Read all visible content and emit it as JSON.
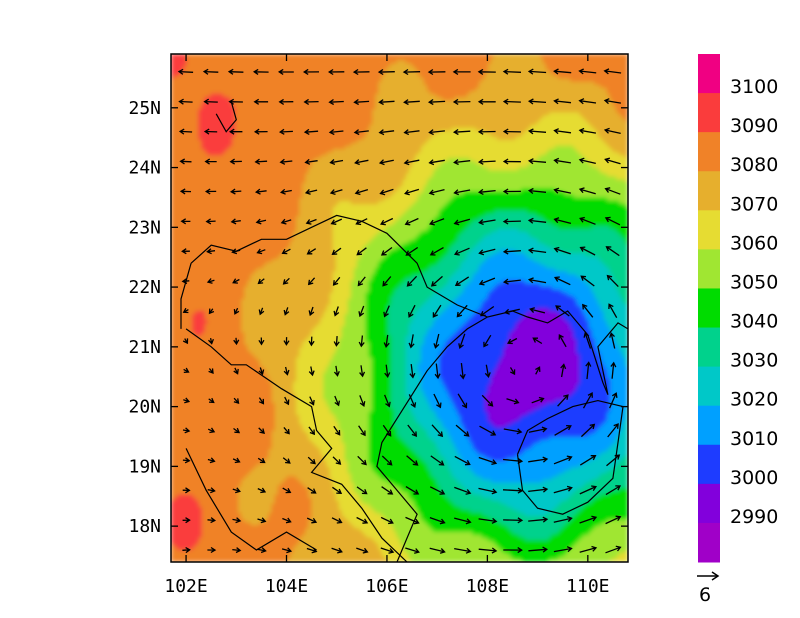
{
  "map": {
    "lon_range": [
      101.7,
      110.8
    ],
    "lat_range": [
      17.4,
      25.9
    ],
    "lon_ticks": [
      {
        "value": 102,
        "label": "102E"
      },
      {
        "value": 104,
        "label": "104E"
      },
      {
        "value": 106,
        "label": "106E"
      },
      {
        "value": 108,
        "label": "108E"
      },
      {
        "value": 110,
        "label": "110E"
      }
    ],
    "lat_ticks": [
      {
        "value": 18,
        "label": "18N"
      },
      {
        "value": 19,
        "label": "19N"
      },
      {
        "value": 20,
        "label": "20N"
      },
      {
        "value": 21,
        "label": "21N"
      },
      {
        "value": 22,
        "label": "22N"
      },
      {
        "value": 23,
        "label": "23N"
      },
      {
        "value": 24,
        "label": "24N"
      },
      {
        "value": 25,
        "label": "25N"
      }
    ],
    "low_center": {
      "lon": 108.8,
      "lat": 20.6
    },
    "field_min": 2985,
    "field_max": 3095
  },
  "colorbar": {
    "levels": [
      2990,
      3000,
      3010,
      3020,
      3030,
      3040,
      3050,
      3060,
      3070,
      3080,
      3090,
      3100
    ],
    "labels": [
      "3100",
      "3090",
      "3080",
      "3070",
      "3060",
      "3050",
      "3040",
      "3030",
      "3020",
      "3010",
      "3000",
      "2990"
    ],
    "colors": [
      "#a000c8",
      "#8200dc",
      "#1e3cff",
      "#00a0ff",
      "#00c8c8",
      "#00d28c",
      "#00dc00",
      "#a0e632",
      "#e6dc32",
      "#e6af2d",
      "#f08228",
      "#fa3c3c",
      "#f00082"
    ]
  },
  "vector_reference": {
    "label": "6"
  }
}
